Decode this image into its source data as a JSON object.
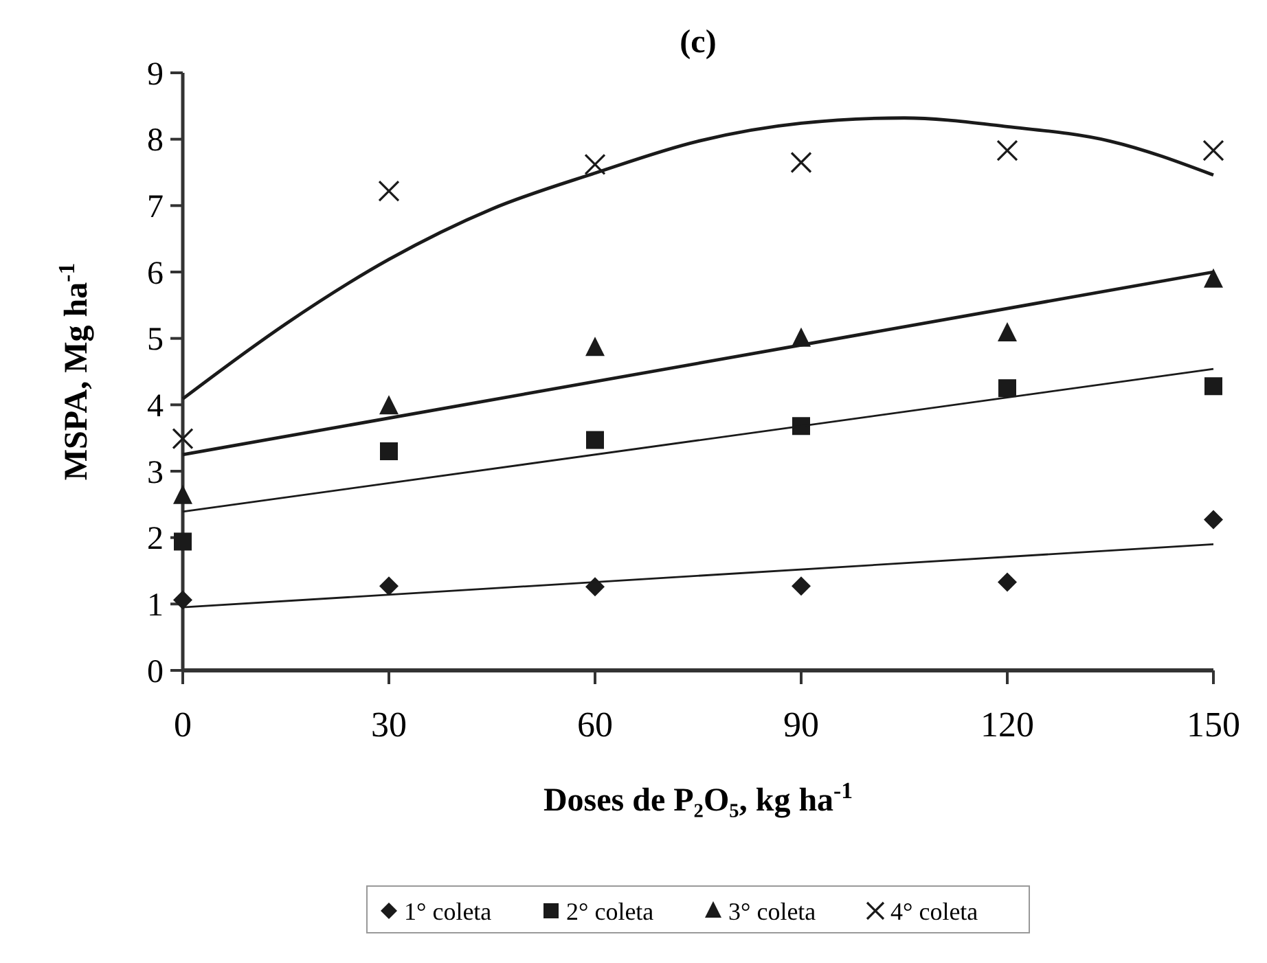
{
  "chart_data": {
    "type": "scatter",
    "title": "(c)",
    "xlabel": "Doses de P₂O₅, kg ha$^{-1}$",
    "ylabel": "MSPA, Mg ha$^{-1}$",
    "x": [
      0,
      30,
      60,
      90,
      120,
      150
    ],
    "xlim": [
      0,
      150
    ],
    "xticks": [
      0,
      30,
      60,
      90,
      120,
      150
    ],
    "ylim": [
      0,
      9
    ],
    "yticks": [
      0,
      1,
      2,
      3,
      4,
      5,
      6,
      7,
      8,
      9
    ],
    "grid": false,
    "legend": "bottom",
    "series": [
      {
        "name": "1° coleta",
        "color": "#1a1a1a",
        "marker": "diamond",
        "values": [
          1.06,
          1.27,
          1.26,
          1.27,
          1.33,
          2.27
        ]
      },
      {
        "name": "2° coleta",
        "color": "#1a1a1a",
        "marker": "square",
        "values": [
          1.94,
          3.3,
          3.47,
          3.68,
          4.25,
          4.28
        ]
      },
      {
        "name": "3° coleta",
        "color": "#1a1a1a",
        "marker": "triangle",
        "values": [
          2.63,
          3.98,
          4.86,
          5.0,
          5.08,
          5.89
        ]
      },
      {
        "name": "4° coleta",
        "color": "#1a1a1a",
        "marker": "cross",
        "values": [
          3.49,
          7.22,
          7.62,
          7.65,
          7.83,
          7.83
        ]
      },
      {
        "type": "line",
        "color": "#1a1a1a",
        "x": [
          0,
          150
        ],
        "values": [
          0.95,
          1.9
        ]
      },
      {
        "type": "line",
        "color": "#1a1a1a",
        "x": [
          0,
          150
        ],
        "values": [
          2.39,
          4.54
        ]
      },
      {
        "type": "line",
        "color": "#1a1a1a",
        "x": [
          0,
          150
        ],
        "values": [
          3.25,
          6.0
        ]
      },
      {
        "type": "line",
        "color": "#1a1a1a",
        "x": [
          0,
          15,
          30,
          45,
          60,
          75,
          90,
          105,
          120,
          135,
          150
        ],
        "values": [
          4.09,
          5.22,
          6.19,
          6.95,
          7.49,
          7.97,
          8.24,
          8.32,
          8.19,
          7.97,
          7.46
        ]
      }
    ]
  }
}
